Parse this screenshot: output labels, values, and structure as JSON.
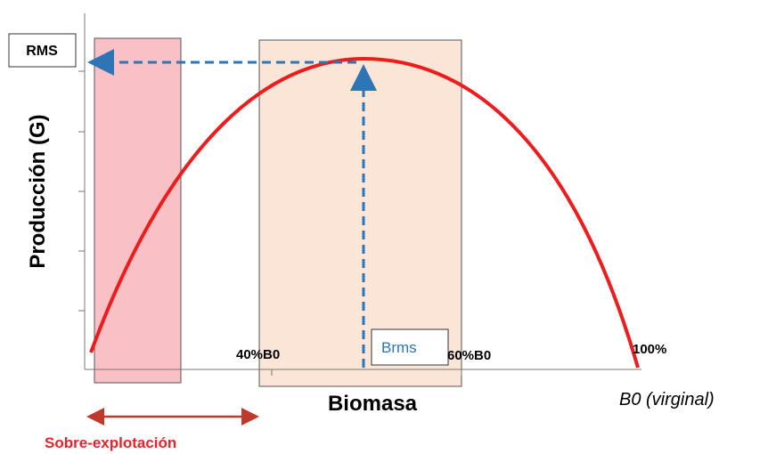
{
  "y_axis_label": "Producción (G)",
  "x_axis_label": "Biomasa",
  "x_axis_end_label": "B0 (virginal)",
  "peak_label": "RMS",
  "peak_biomass_label": "Brms",
  "markers": [
    "40%B0",
    "60%B0",
    "100%"
  ],
  "zone_label": "Sobre-explotación"
}
